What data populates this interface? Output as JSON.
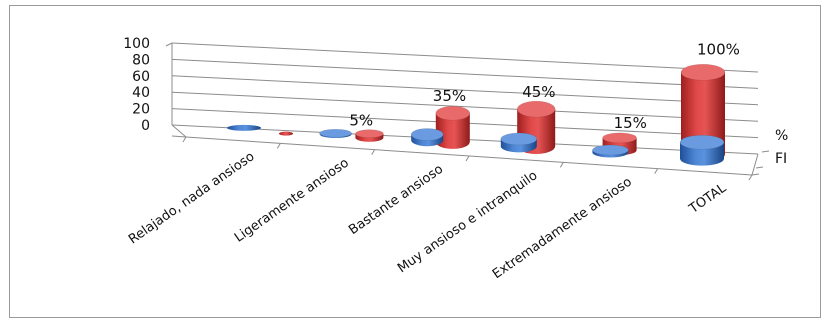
{
  "chart_data": {
    "type": "bar",
    "subtype": "3d-cylinder",
    "title": "",
    "xlabel": "",
    "ylabel": "",
    "ylim": [
      0,
      100
    ],
    "yticks": [
      "0",
      "20",
      "40",
      "60",
      "80",
      "100"
    ],
    "grid": true,
    "categories": [
      "Relajado, nada ansioso",
      "Ligeramente ansioso",
      "Bastante ansioso",
      "Muy ansioso e intranquilo",
      "Extremadamente ansioso",
      "TOTAL"
    ],
    "series": [
      {
        "name": "%",
        "color": "#d93a3a",
        "values": [
          0,
          5,
          35,
          45,
          15,
          100
        ],
        "data_labels": [
          "",
          "5%",
          "35%",
          "45%",
          "15%",
          "100%"
        ]
      },
      {
        "name": "FI",
        "color": "#3f77c7",
        "values": [
          0,
          1,
          7,
          9,
          3,
          20
        ],
        "data_labels": [
          "",
          "",
          "",
          "",
          "",
          ""
        ]
      }
    ]
  }
}
